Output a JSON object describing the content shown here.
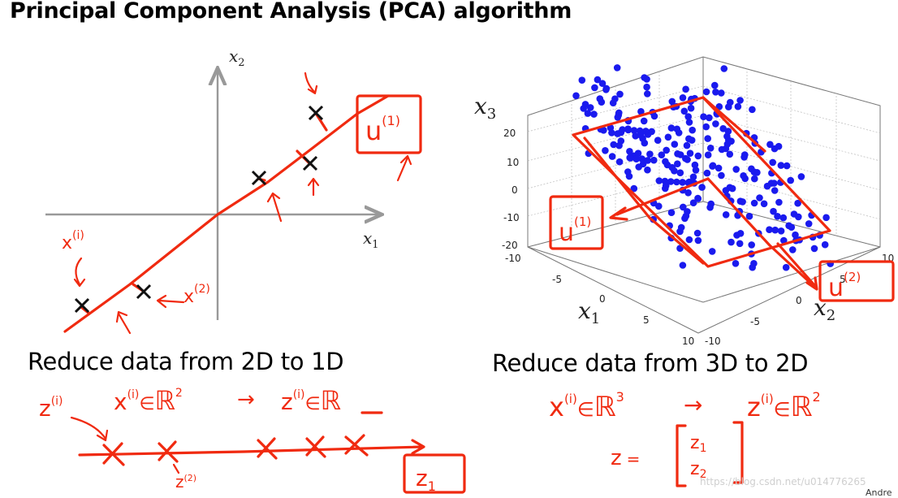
{
  "slide": {
    "title": "Principal Component Analysis (PCA) algorithm",
    "left_caption": "Reduce data from 2D to 1D",
    "right_caption": "Reduce data from 3D to 2D",
    "watermark": "https://blog.csdn.net/u014776265",
    "author_fragment": "Andre"
  },
  "left_plot": {
    "x_axis_label": "x",
    "x_axis_subscript": "1",
    "y_axis_label": "x",
    "y_axis_subscript": "2"
  },
  "right_plot": {
    "z_axis_label": "x",
    "z_axis_subscript": "3",
    "x_axis_label": "x",
    "x_axis_subscript": "1",
    "y_axis_label": "x",
    "y_axis_subscript": "2",
    "z_ticks": [
      "20",
      "10",
      "0",
      "-10",
      "-20"
    ],
    "x_ticks": [
      "-10",
      "-5",
      "0",
      "5",
      "10"
    ],
    "y_ticks": [
      "-10",
      "-5",
      "0",
      "5",
      "10"
    ],
    "point_color": "#1a1aee"
  },
  "annotations": {
    "ink_color": "#f02a10",
    "u1_left": "u",
    "u1_sup": "(1)",
    "x1_label": "x",
    "x1_sup": "(i)",
    "x2_label": "x",
    "x2_sup": "(2)",
    "z_label": "z",
    "z_sup": "(i)",
    "in_symbol": "∈",
    "reals": "ℝ",
    "pow2": "2",
    "pow3": "3",
    "arrow": "→",
    "z1_box": "z",
    "z1_sub": "1",
    "z2_under": "z",
    "z2_sup": "(2)",
    "u1_right": "u",
    "u2_right": "u",
    "u2_sup": "(2)",
    "z_vec_lhs": "z",
    "z_vec_eq": "=",
    "z_vec_1": "z",
    "z_vec_1_sub": "1",
    "z_vec_2": "z",
    "z_vec_2_sub": "2"
  }
}
